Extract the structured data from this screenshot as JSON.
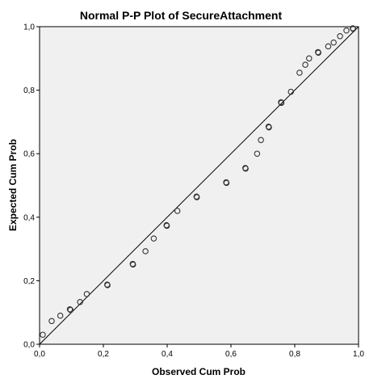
{
  "chart_data": {
    "type": "scatter",
    "title": "Normal P-P Plot of SecureAttachment",
    "xlabel": "Observed Cum Prob",
    "ylabel": "Expected Cum Prob",
    "xlim": [
      0,
      1
    ],
    "ylim": [
      0,
      1
    ],
    "xticks": [
      "0,0",
      "0,2",
      "0,4",
      "0,6",
      "0,8",
      "1,0"
    ],
    "yticks": [
      "0,0",
      "0,2",
      "0,4",
      "0,6",
      "0,8",
      "1,0"
    ],
    "grid": false,
    "reference_line": {
      "from": [
        0,
        0
      ],
      "to": [
        1,
        1
      ]
    },
    "points": [
      {
        "x": 0.01,
        "y": 0.03
      },
      {
        "x": 0.038,
        "y": 0.073
      },
      {
        "x": 0.065,
        "y": 0.09
      },
      {
        "x": 0.095,
        "y": 0.11
      },
      {
        "x": 0.097,
        "y": 0.108
      },
      {
        "x": 0.127,
        "y": 0.133
      },
      {
        "x": 0.148,
        "y": 0.158
      },
      {
        "x": 0.212,
        "y": 0.188
      },
      {
        "x": 0.213,
        "y": 0.186
      },
      {
        "x": 0.292,
        "y": 0.253
      },
      {
        "x": 0.293,
        "y": 0.251
      },
      {
        "x": 0.332,
        "y": 0.293
      },
      {
        "x": 0.358,
        "y": 0.333
      },
      {
        "x": 0.398,
        "y": 0.375
      },
      {
        "x": 0.399,
        "y": 0.373
      },
      {
        "x": 0.432,
        "y": 0.42
      },
      {
        "x": 0.492,
        "y": 0.465
      },
      {
        "x": 0.493,
        "y": 0.463
      },
      {
        "x": 0.585,
        "y": 0.51
      },
      {
        "x": 0.586,
        "y": 0.508
      },
      {
        "x": 0.645,
        "y": 0.555
      },
      {
        "x": 0.646,
        "y": 0.553
      },
      {
        "x": 0.682,
        "y": 0.6
      },
      {
        "x": 0.694,
        "y": 0.643
      },
      {
        "x": 0.718,
        "y": 0.685
      },
      {
        "x": 0.719,
        "y": 0.683
      },
      {
        "x": 0.757,
        "y": 0.762
      },
      {
        "x": 0.758,
        "y": 0.76
      },
      {
        "x": 0.788,
        "y": 0.795
      },
      {
        "x": 0.815,
        "y": 0.855
      },
      {
        "x": 0.833,
        "y": 0.88
      },
      {
        "x": 0.845,
        "y": 0.9
      },
      {
        "x": 0.873,
        "y": 0.92
      },
      {
        "x": 0.874,
        "y": 0.918
      },
      {
        "x": 0.905,
        "y": 0.938
      },
      {
        "x": 0.922,
        "y": 0.95
      },
      {
        "x": 0.942,
        "y": 0.97
      },
      {
        "x": 0.962,
        "y": 0.988
      },
      {
        "x": 0.982,
        "y": 0.995
      },
      {
        "x": 0.983,
        "y": 0.993
      }
    ]
  }
}
